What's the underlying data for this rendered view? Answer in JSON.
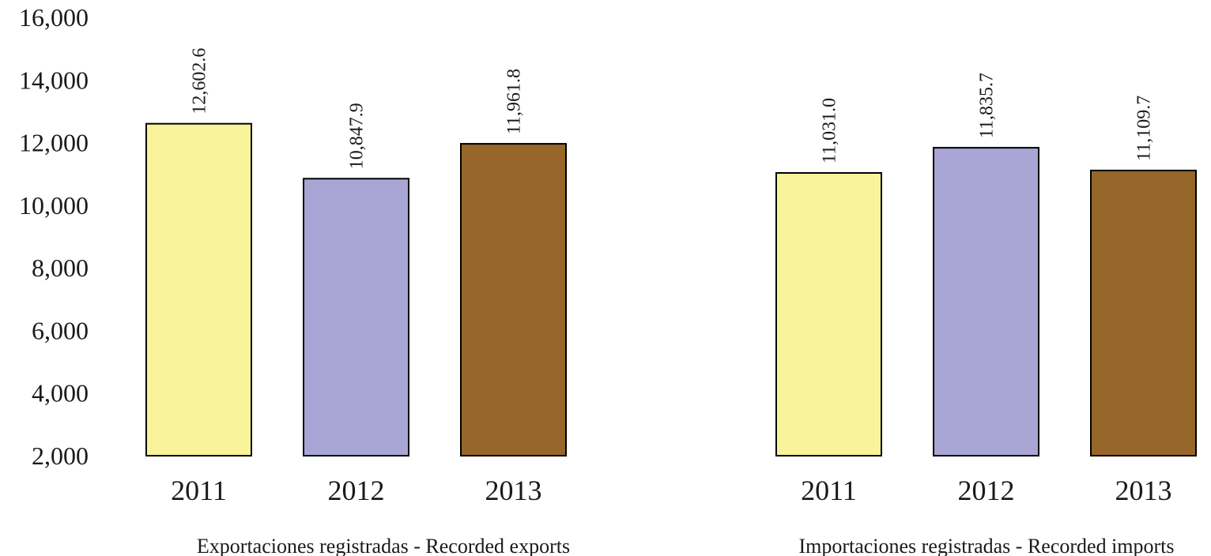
{
  "chart_data": {
    "type": "bar",
    "ylim": [
      2000,
      16000
    ],
    "y_ticks": [
      "2,000",
      "4,000",
      "6,000",
      "8,000",
      "10,000",
      "12,000",
      "14,000",
      "16,000"
    ],
    "grid": false,
    "legend": "none",
    "colors": {
      "2011": "#f9f39a",
      "2012": "#a9a5d4",
      "2013": "#97662a"
    },
    "groups": [
      {
        "label": "Exportaciones registradas - Recorded exports",
        "categories": [
          "2011",
          "2012",
          "2013"
        ],
        "values": [
          12602.6,
          10847.9,
          11961.8
        ],
        "value_labels": [
          "12,602.6",
          "10,847.9",
          "11,961.8"
        ]
      },
      {
        "label": "Importaciones registradas - Recorded imports",
        "categories": [
          "2011",
          "2012",
          "2013"
        ],
        "values": [
          11031.0,
          11835.7,
          11109.7
        ],
        "value_labels": [
          "11,031.0",
          "11,835.7",
          "11,109.7"
        ]
      }
    ]
  }
}
